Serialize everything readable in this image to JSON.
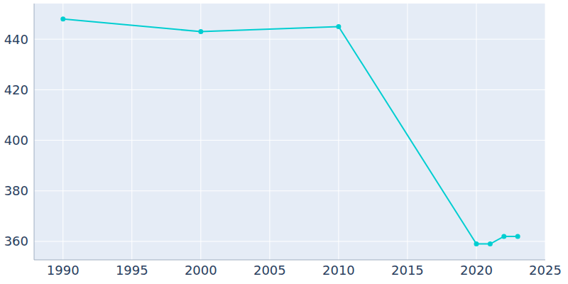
{
  "chart_data": {
    "type": "line",
    "x": [
      1990,
      2000,
      2010,
      2020,
      2021,
      2022,
      2023
    ],
    "values": [
      448,
      443,
      445,
      359,
      359,
      362,
      362
    ],
    "color": "#00ced1",
    "marker": "circle",
    "xlim": [
      1987.9,
      2025
    ],
    "xticks": [
      1990,
      1995,
      2000,
      2005,
      2010,
      2015,
      2020,
      2025
    ],
    "ylim": [
      352.7,
      454.1
    ],
    "yticks": [
      360,
      380,
      400,
      420,
      440
    ],
    "grid": true
  }
}
